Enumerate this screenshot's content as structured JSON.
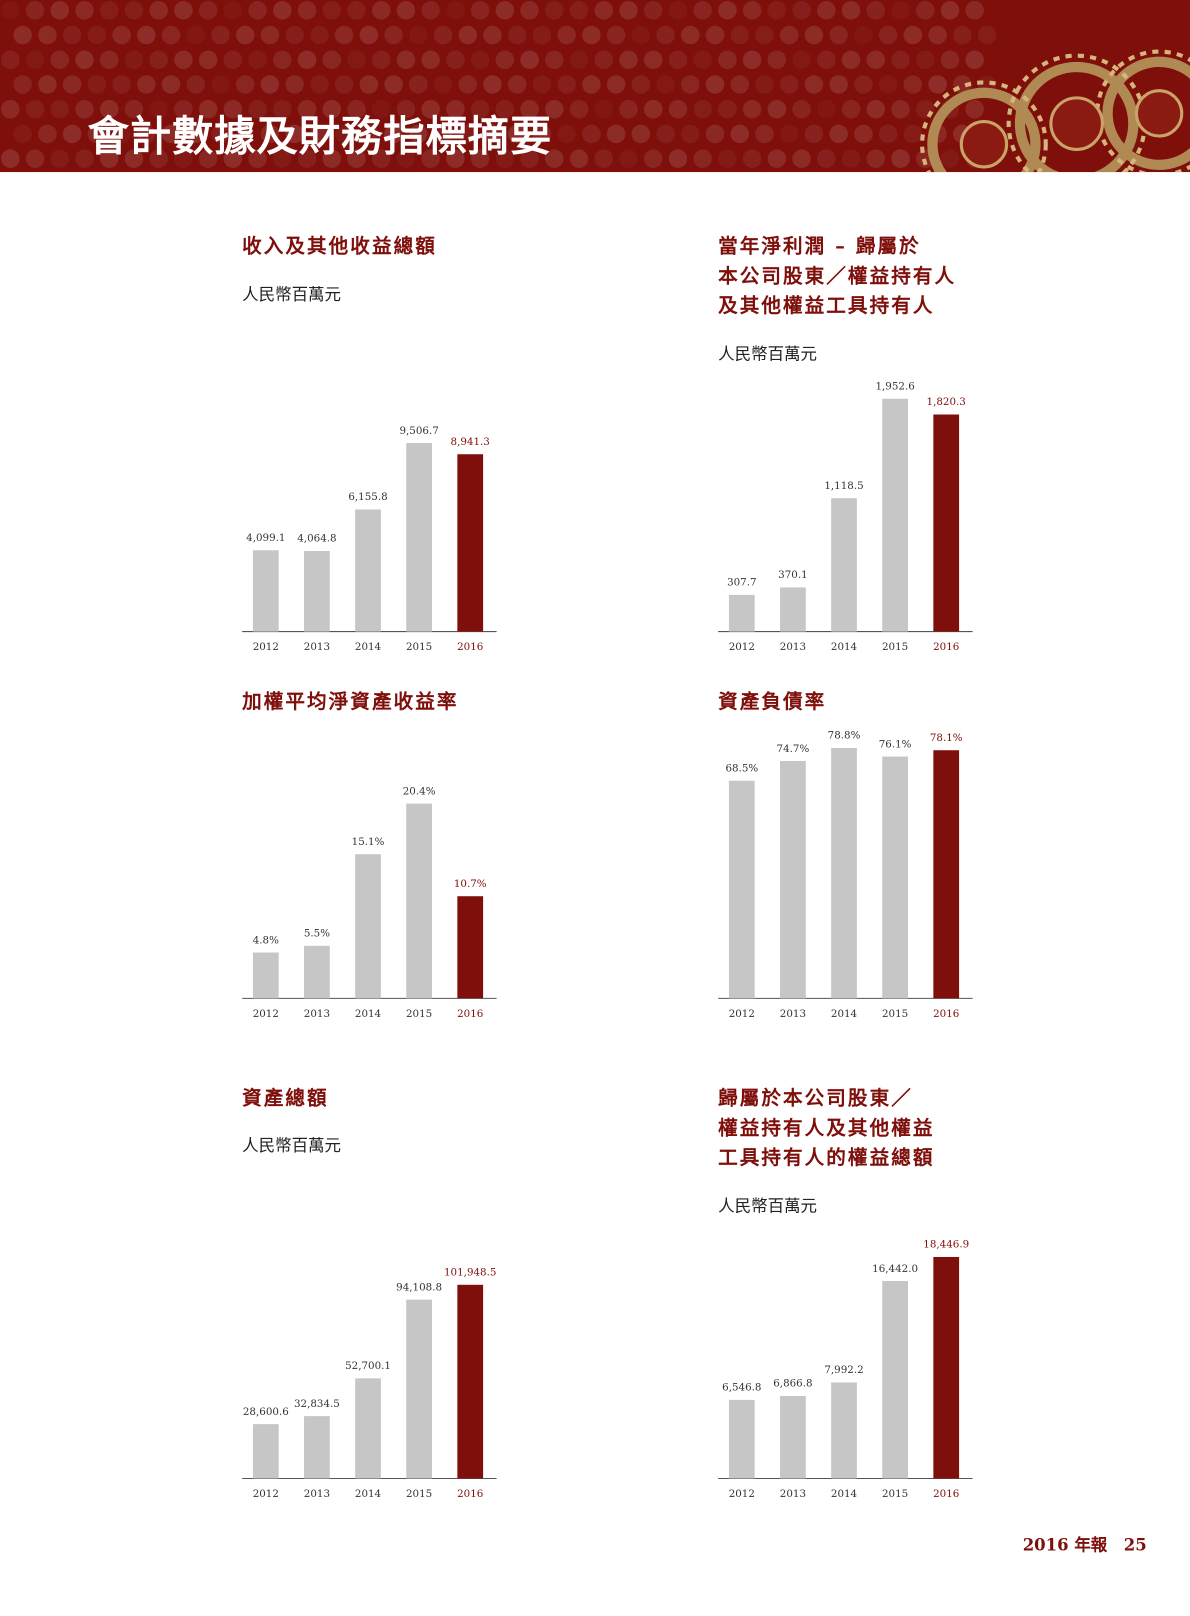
{
  "header": {
    "title": "會計數據及財務指標摘要"
  },
  "footer": {
    "report": "2016 年報",
    "page": "25"
  },
  "colors": {
    "accent": "#7e0f0b",
    "bar": "#c6c6c6",
    "highlight_bar": "#7e0f0b"
  },
  "chart_data": [
    {
      "type": "bar",
      "title": "收入及其他收益總額",
      "subtitle": "人民幣百萬元",
      "categories": [
        "2012",
        "2013",
        "2014",
        "2015",
        "2016"
      ],
      "values": [
        4099.1,
        4064.8,
        6155.8,
        9506.7,
        8941.3
      ],
      "labels": [
        "4,099.1",
        "4,064.8",
        "6,155.8",
        "9,506.7",
        "8,941.3"
      ],
      "highlight": "2016"
    },
    {
      "type": "bar",
      "title": "當年淨利潤 – 歸屬於\n本公司股東／權益持有人\n及其他權益工具持有人",
      "subtitle": "人民幣百萬元",
      "categories": [
        "2012",
        "2013",
        "2014",
        "2015",
        "2016"
      ],
      "values": [
        307.7,
        370.1,
        1118.5,
        1952.6,
        1820.3
      ],
      "labels": [
        "307.7",
        "370.1",
        "1,118.5",
        "1,952.6",
        "1,820.3"
      ],
      "highlight": "2016"
    },
    {
      "type": "bar",
      "title": "加權平均淨資產收益率",
      "subtitle": "",
      "categories": [
        "2012",
        "2013",
        "2014",
        "2015",
        "2016"
      ],
      "values": [
        4.8,
        5.5,
        15.1,
        20.4,
        10.7
      ],
      "labels": [
        "4.8%",
        "5.5%",
        "15.1%",
        "20.4%",
        "10.7%"
      ],
      "highlight": "2016"
    },
    {
      "type": "bar",
      "title": "資產負債率",
      "subtitle": "",
      "categories": [
        "2012",
        "2013",
        "2014",
        "2015",
        "2016"
      ],
      "values": [
        68.5,
        74.7,
        78.8,
        76.1,
        78.1
      ],
      "labels": [
        "68.5%",
        "74.7%",
        "78.8%",
        "76.1%",
        "78.1%"
      ],
      "highlight": "2016"
    },
    {
      "type": "bar",
      "title": "資產總額",
      "subtitle": "人民幣百萬元",
      "categories": [
        "2012",
        "2013",
        "2014",
        "2015",
        "2016"
      ],
      "values": [
        28600.6,
        32834.5,
        52700.1,
        94108.8,
        101948.5
      ],
      "labels": [
        "28,600.6",
        "32,834.5",
        "52,700.1",
        "94,108.8",
        "101,948.5"
      ],
      "highlight": "2016"
    },
    {
      "type": "bar",
      "title": "歸屬於本公司股東／\n權益持有人及其他權益\n工具持有人的權益總額",
      "subtitle": "人民幣百萬元",
      "categories": [
        "2012",
        "2013",
        "2014",
        "2015",
        "2016"
      ],
      "values": [
        6546.8,
        6866.8,
        7992.2,
        16442.0,
        18446.9
      ],
      "labels": [
        "6,546.8",
        "6,866.8",
        "7,992.2",
        "16,442.0",
        "18,446.9"
      ],
      "highlight": "2016"
    }
  ]
}
